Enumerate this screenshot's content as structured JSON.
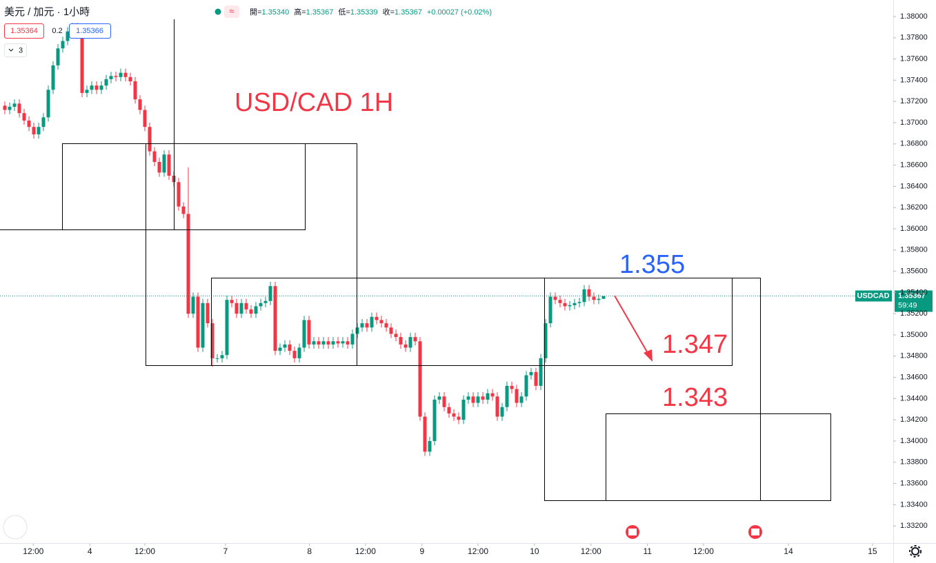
{
  "chart_data": {
    "type": "candlestick",
    "symbol_title": "美元 / 加元 · 1小時",
    "title": "USD/CAD 1H",
    "annotations": [
      "1.355",
      "1.347",
      "1.343"
    ],
    "ohlc_legend": [
      {
        "label": "開=",
        "value": "1.35340"
      },
      {
        "label": "高=",
        "value": "1.35367"
      },
      {
        "label": "低=",
        "value": "1.35339"
      },
      {
        "label": "收=",
        "value": "1.35367"
      },
      {
        "label": "",
        "value": "+0.00027 (+0.02%)"
      }
    ],
    "trade_buttons": {
      "sell": "1.35364",
      "spread": "0.2",
      "buy": "1.35366",
      "indicators": "3"
    },
    "price_badge": {
      "symbol": "USDCAD",
      "price": "1.35367",
      "countdown": "59:49"
    },
    "up_color": "#089981",
    "down_color": "#f23645",
    "grid": false,
    "open": [
      1.3716,
      1.3712,
      1.3715,
      1.3718,
      1.3709,
      1.3702,
      1.3696,
      1.3689,
      1.3696,
      1.3705,
      1.3731,
      1.3754,
      1.377,
      1.3777,
      1.3786,
      1.379,
      1.3783,
      1.3728,
      1.3731,
      1.3735,
      1.3731,
      1.3735,
      1.3741,
      1.3744,
      1.3743,
      1.3747,
      1.3743,
      1.3739,
      1.3722,
      1.3712,
      1.3696,
      1.3673,
      1.3663,
      1.3653,
      1.367,
      1.365,
      1.3644,
      1.3621,
      1.3614,
      1.352,
      1.3536,
      1.3488,
      1.353,
      1.3511,
      1.3478,
      1.3478,
      1.3481,
      1.3533,
      1.353,
      1.352,
      1.353,
      1.3524,
      1.352,
      1.3527,
      1.353,
      1.3532,
      1.3546,
      1.3485,
      1.3488,
      1.3491,
      1.3485,
      1.3478,
      1.3488,
      1.3514,
      1.3491,
      1.3494,
      1.3491,
      1.3494,
      1.3491,
      1.3494,
      1.3492,
      1.3494,
      1.3491,
      1.3501,
      1.3507,
      1.3511,
      1.3507,
      1.3517,
      1.3514,
      1.3511,
      1.3507,
      1.3501,
      1.3498,
      1.3491,
      1.3488,
      1.3498,
      1.3494,
      1.3423,
      1.339,
      1.34,
      1.3439,
      1.3442,
      1.3432,
      1.3426,
      1.3423,
      1.342,
      1.3439,
      1.3442,
      1.3436,
      1.3442,
      1.3439,
      1.3445,
      1.3442,
      1.3423,
      1.3432,
      1.3452,
      1.3449,
      1.3436,
      1.3442,
      1.3462,
      1.3465,
      1.3452,
      1.3478,
      1.3511,
      1.3536,
      1.3533,
      1.353,
      1.3527,
      1.3528,
      1.353,
      1.3531,
      1.3543,
      1.3536,
      1.3533,
      1.3534
    ],
    "high": [
      1.372,
      1.3719,
      1.3722,
      1.3722,
      1.3713,
      1.3706,
      1.37,
      1.37,
      1.3709,
      1.3735,
      1.3758,
      1.3774,
      1.3781,
      1.379,
      1.3794,
      1.3794,
      1.3787,
      1.3735,
      1.3739,
      1.3739,
      1.3739,
      1.3745,
      1.3748,
      1.3748,
      1.3751,
      1.3751,
      1.3747,
      1.3743,
      1.3726,
      1.3716,
      1.37,
      1.3677,
      1.3667,
      1.3674,
      1.3674,
      1.3654,
      1.3648,
      1.3625,
      1.3658,
      1.354,
      1.354,
      1.3534,
      1.3534,
      1.3515,
      1.3482,
      1.3485,
      1.3537,
      1.3537,
      1.3534,
      1.3534,
      1.3534,
      1.3528,
      1.3531,
      1.3534,
      1.3536,
      1.355,
      1.355,
      1.3492,
      1.3495,
      1.3495,
      1.3489,
      1.3492,
      1.3518,
      1.3518,
      1.3498,
      1.3498,
      1.3498,
      1.3498,
      1.3498,
      1.3498,
      1.3498,
      1.3498,
      1.3505,
      1.3511,
      1.3515,
      1.3515,
      1.3521,
      1.3521,
      1.3518,
      1.3515,
      1.3511,
      1.3505,
      1.3502,
      1.3495,
      1.3502,
      1.3502,
      1.3498,
      1.3427,
      1.3404,
      1.3443,
      1.3446,
      1.3446,
      1.3436,
      1.343,
      1.3427,
      1.3443,
      1.3446,
      1.3446,
      1.3446,
      1.3446,
      1.3449,
      1.3449,
      1.3446,
      1.3436,
      1.3456,
      1.3456,
      1.3453,
      1.3446,
      1.3466,
      1.3469,
      1.3469,
      1.3482,
      1.3515,
      1.354,
      1.354,
      1.3537,
      1.3534,
      1.3532,
      1.3534,
      1.3535,
      1.3547,
      1.3547,
      1.354,
      1.3538,
      1.35367
    ],
    "low": [
      1.3708,
      1.3708,
      1.3711,
      1.3705,
      1.3698,
      1.3692,
      1.3685,
      1.3685,
      1.3692,
      1.3701,
      1.3727,
      1.375,
      1.3766,
      1.3773,
      1.3782,
      1.3779,
      1.3724,
      1.3724,
      1.3727,
      1.3727,
      1.3727,
      1.3731,
      1.3737,
      1.3739,
      1.3739,
      1.3739,
      1.3735,
      1.3718,
      1.3708,
      1.3692,
      1.3669,
      1.3659,
      1.3649,
      1.3649,
      1.3646,
      1.364,
      1.3617,
      1.361,
      1.3516,
      1.3516,
      1.3484,
      1.3484,
      1.3507,
      1.347,
      1.3474,
      1.3474,
      1.3477,
      1.3526,
      1.3516,
      1.3516,
      1.352,
      1.3516,
      1.3516,
      1.3523,
      1.3526,
      1.3528,
      1.3481,
      1.3481,
      1.3484,
      1.3481,
      1.3474,
      1.3474,
      1.3484,
      1.3487,
      1.3487,
      1.3487,
      1.3487,
      1.3487,
      1.3487,
      1.3488,
      1.3488,
      1.3487,
      1.3487,
      1.3497,
      1.3503,
      1.3503,
      1.3503,
      1.351,
      1.3507,
      1.3503,
      1.3497,
      1.3494,
      1.3487,
      1.3484,
      1.3484,
      1.349,
      1.3419,
      1.3386,
      1.3386,
      1.3396,
      1.3435,
      1.3428,
      1.3422,
      1.3419,
      1.3416,
      1.3416,
      1.3435,
      1.3432,
      1.3432,
      1.3435,
      1.3435,
      1.3438,
      1.3419,
      1.3419,
      1.3428,
      1.3445,
      1.3432,
      1.3432,
      1.3438,
      1.3458,
      1.3448,
      1.3448,
      1.3474,
      1.3507,
      1.3529,
      1.3526,
      1.3523,
      1.3523,
      1.3524,
      1.3526,
      1.3527,
      1.3532,
      1.3529,
      1.3529,
      1.35339
    ],
    "close": [
      1.3712,
      1.3715,
      1.3718,
      1.3709,
      1.3702,
      1.3696,
      1.3689,
      1.3696,
      1.3705,
      1.3731,
      1.3754,
      1.377,
      1.3777,
      1.3786,
      1.379,
      1.3783,
      1.3728,
      1.3731,
      1.3735,
      1.3731,
      1.3735,
      1.3741,
      1.3744,
      1.3743,
      1.3747,
      1.3743,
      1.3739,
      1.3722,
      1.3712,
      1.3696,
      1.3673,
      1.3663,
      1.3653,
      1.367,
      1.365,
      1.3644,
      1.3621,
      1.3614,
      1.352,
      1.3536,
      1.3488,
      1.353,
      1.3511,
      1.3478,
      1.3478,
      1.3481,
      1.3533,
      1.353,
      1.352,
      1.353,
      1.3524,
      1.352,
      1.3527,
      1.353,
      1.3532,
      1.3546,
      1.3485,
      1.3488,
      1.3491,
      1.3485,
      1.3478,
      1.3488,
      1.3514,
      1.3491,
      1.3494,
      1.3491,
      1.3494,
      1.3491,
      1.3494,
      1.3492,
      1.3494,
      1.3491,
      1.3501,
      1.3507,
      1.3511,
      1.3507,
      1.3517,
      1.3514,
      1.3511,
      1.3507,
      1.3501,
      1.3498,
      1.3491,
      1.3488,
      1.3498,
      1.3494,
      1.3423,
      1.339,
      1.34,
      1.3439,
      1.3442,
      1.3432,
      1.3426,
      1.3423,
      1.342,
      1.3439,
      1.3442,
      1.3436,
      1.3442,
      1.3439,
      1.3445,
      1.3442,
      1.3423,
      1.3432,
      1.3452,
      1.3449,
      1.3436,
      1.3442,
      1.3462,
      1.3465,
      1.3452,
      1.3478,
      1.3511,
      1.3536,
      1.3533,
      1.353,
      1.3527,
      1.3528,
      1.353,
      1.3531,
      1.3543,
      1.3536,
      1.3533,
      1.3534,
      1.35367
    ],
    "xlim": [
      -1,
      184
    ],
    "xticks": [
      {
        "value": 5.9,
        "label": "12:00"
      },
      {
        "value": 17.6,
        "label": "4"
      },
      {
        "value": 29,
        "label": "12:00"
      },
      {
        "value": 45.7,
        "label": "7"
      },
      {
        "value": 63.1,
        "label": "8"
      },
      {
        "value": 74.7,
        "label": "12:00"
      },
      {
        "value": 86.4,
        "label": "9"
      },
      {
        "value": 98,
        "label": "12:00"
      },
      {
        "value": 109.7,
        "label": "10"
      },
      {
        "value": 121.4,
        "label": "12:00"
      },
      {
        "value": 133.1,
        "label": "11"
      },
      {
        "value": 144.7,
        "label": "12:00"
      },
      {
        "value": 162.3,
        "label": "14"
      },
      {
        "value": 179.7,
        "label": "15"
      }
    ],
    "ylim": [
      1.33026,
      1.38156
    ],
    "yticks": [
      {
        "value": 1.38,
        "label": "1.38000"
      },
      {
        "value": 1.378,
        "label": "1.37800"
      },
      {
        "value": 1.376,
        "label": "1.37600"
      },
      {
        "value": 1.374,
        "label": "1.37400"
      },
      {
        "value": 1.372,
        "label": "1.37200"
      },
      {
        "value": 1.37,
        "label": "1.37000"
      },
      {
        "value": 1.368,
        "label": "1.36800"
      },
      {
        "value": 1.366,
        "label": "1.36600"
      },
      {
        "value": 1.364,
        "label": "1.36400"
      },
      {
        "value": 1.362,
        "label": "1.36200"
      },
      {
        "value": 1.36,
        "label": "1.36000"
      },
      {
        "value": 1.358,
        "label": "1.35800"
      },
      {
        "value": 1.356,
        "label": "1.35600"
      },
      {
        "value": 1.354,
        "label": "1.35400"
      },
      {
        "value": 1.352,
        "label": "1.35200"
      },
      {
        "value": 1.35,
        "label": "1.35000"
      },
      {
        "value": 1.348,
        "label": "1.34800"
      },
      {
        "value": 1.346,
        "label": "1.34600"
      },
      {
        "value": 1.344,
        "label": "1.34400"
      },
      {
        "value": 1.342,
        "label": "1.34200"
      },
      {
        "value": 1.34,
        "label": "1.34000"
      },
      {
        "value": 1.338,
        "label": "1.33800"
      },
      {
        "value": 1.336,
        "label": "1.33600"
      },
      {
        "value": 1.334,
        "label": "1.33400"
      },
      {
        "value": 1.332,
        "label": "1.33200"
      }
    ]
  }
}
